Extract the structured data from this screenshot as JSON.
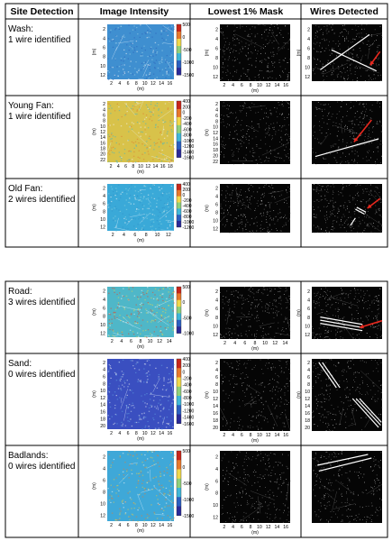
{
  "headers": [
    "Site Detection",
    "Image Intensity",
    "Lowest 1% Mask",
    "Wires Detected"
  ],
  "unit_label": "(m)",
  "rows": [
    {
      "name": "Wash:",
      "result": "1 wire identified",
      "x_ticks": [
        "2",
        "4",
        "6",
        "8",
        "10",
        "12",
        "14",
        "16"
      ],
      "y_ticks": [
        "2",
        "4",
        "6",
        "8",
        "10",
        "12"
      ],
      "cbar_ticks": [
        "500",
        "0",
        "-500",
        "-1000",
        "-1500"
      ],
      "mask_x_ticks": [
        "2",
        "4",
        "6",
        "8",
        "10",
        "12",
        "14",
        "16"
      ],
      "mask_y_ticks": [
        "2",
        "4",
        "6",
        "8",
        "10",
        "12"
      ],
      "wire_y_ticks": [
        "2",
        "4",
        "6",
        "8",
        "10",
        "12"
      ],
      "colors": {
        "base": "#3f8fd0",
        "accent": "#2b5fb8",
        "hot": "#9ad2e8"
      },
      "wire_lines": [
        [
          0.12,
          0.8,
          0.82,
          0.18
        ],
        [
          0.28,
          0.45,
          0.92,
          0.82
        ]
      ],
      "arrows": [
        [
          0.97,
          0.48,
          0.83,
          0.72
        ]
      ]
    },
    {
      "name": "Young Fan:",
      "result": "1 wire identified",
      "x_ticks": [
        "2",
        "4",
        "6",
        "8",
        "10",
        "12",
        "14",
        "16",
        "18"
      ],
      "y_ticks": [
        "2",
        "4",
        "6",
        "8",
        "10",
        "12",
        "14",
        "16",
        "18",
        "20",
        "22"
      ],
      "cbar_ticks": [
        "400",
        "200",
        "0",
        "-200",
        "-400",
        "-600",
        "-800",
        "-1000",
        "-1200",
        "-1400",
        "-1600"
      ],
      "mask_x_ticks": [],
      "mask_y_ticks": [
        "2",
        "4",
        "6",
        "8",
        "10",
        "12",
        "14",
        "16",
        "18",
        "20",
        "22"
      ],
      "wire_y_ticks": [],
      "colors": {
        "base": "#d8c24a",
        "accent": "#3fb7c8",
        "hot": "#e07a30"
      },
      "wire_lines": [
        [
          0.05,
          0.88,
          0.95,
          0.6
        ]
      ],
      "arrows": [
        [
          0.85,
          0.3,
          0.6,
          0.65
        ]
      ]
    },
    {
      "name": "Old Fan:",
      "result": "2 wires identified",
      "x_ticks": [
        "2",
        "4",
        "6",
        "8",
        "10",
        "12"
      ],
      "y_ticks": [
        "2",
        "4",
        "6",
        "8",
        "10",
        "12"
      ],
      "cbar_ticks": [
        "400",
        "200",
        "0",
        "-200",
        "-400",
        "-600",
        "-800",
        "-1000",
        "-1200"
      ],
      "mask_x_ticks": [],
      "mask_y_ticks": [
        "2",
        "4",
        "6",
        "8",
        "10",
        "12"
      ],
      "wire_y_ticks": [],
      "colors": {
        "base": "#3aa9d8",
        "accent": "#2f8fc8",
        "hot": "#8fd3e0"
      },
      "wire_lines": [
        [
          0.62,
          0.52,
          0.75,
          0.62
        ],
        [
          0.64,
          0.48,
          0.77,
          0.58
        ],
        [
          0.55,
          0.85,
          0.62,
          0.7
        ]
      ],
      "arrows": [
        [
          0.97,
          0.3,
          0.79,
          0.5
        ]
      ]
    },
    {
      "name": "Road:",
      "result": "3 wires identified",
      "x_ticks": [
        "2",
        "4",
        "6",
        "8",
        "10",
        "12",
        "14"
      ],
      "y_ticks": [
        "2",
        "4",
        "6",
        "8",
        "10",
        "12"
      ],
      "cbar_ticks": [
        "500",
        "0",
        "-500",
        "-1000"
      ],
      "mask_x_ticks": [
        "2",
        "4",
        "6",
        "8",
        "10",
        "12",
        "14"
      ],
      "mask_y_ticks": [
        "2",
        "4",
        "6",
        "8",
        "10",
        "12"
      ],
      "wire_y_ticks": [
        "2",
        "4",
        "6",
        "8",
        "10",
        "12"
      ],
      "colors": {
        "base": "#4fb7c8",
        "accent": "#e8d84a",
        "hot": "#e84a2a"
      },
      "wire_lines": [
        [
          0.12,
          0.58,
          0.72,
          0.72
        ],
        [
          0.12,
          0.64,
          0.72,
          0.78
        ],
        [
          0.12,
          0.7,
          0.72,
          0.84
        ]
      ],
      "arrows": [
        [
          1.0,
          0.65,
          0.68,
          0.78
        ]
      ]
    },
    {
      "name": "Sand:",
      "result": "0 wires identified",
      "x_ticks": [
        "2",
        "4",
        "6",
        "8",
        "10",
        "12",
        "14",
        "16"
      ],
      "y_ticks": [
        "2",
        "4",
        "6",
        "8",
        "10",
        "12",
        "14",
        "16",
        "18",
        "20"
      ],
      "cbar_ticks": [
        "400",
        "200",
        "0",
        "-200",
        "-400",
        "-600",
        "-800",
        "-1000",
        "-1200",
        "-1400",
        "-1600"
      ],
      "mask_x_ticks": [
        "2",
        "4",
        "6",
        "8",
        "10",
        "12",
        "14",
        "16"
      ],
      "mask_y_ticks": [
        "2",
        "4",
        "6",
        "8",
        "10",
        "12",
        "14",
        "16",
        "18",
        "20"
      ],
      "wire_y_ticks": [
        "2",
        "4",
        "6",
        "8",
        "10",
        "12",
        "14",
        "16",
        "18",
        "20"
      ],
      "colors": {
        "base": "#3a4fc0",
        "accent": "#5fa0e0",
        "hot": "#d0e0f0"
      },
      "wire_lines": [
        [
          0.1,
          0.05,
          0.35,
          0.4
        ],
        [
          0.15,
          0.05,
          0.4,
          0.4
        ],
        [
          0.58,
          0.55,
          0.95,
          0.95
        ],
        [
          0.63,
          0.55,
          0.98,
          0.92
        ],
        [
          0.68,
          0.55,
          0.99,
          0.88
        ]
      ],
      "arrows": []
    },
    {
      "name": "Badlands:",
      "result": "0 wires identified",
      "x_ticks": [
        "2",
        "4",
        "6",
        "8",
        "10",
        "12",
        "14",
        "16"
      ],
      "y_ticks": [
        "2",
        "4",
        "6",
        "8",
        "10",
        "12"
      ],
      "cbar_ticks": [
        "500",
        "0",
        "-500",
        "-1000",
        "-1500"
      ],
      "mask_x_ticks": [
        "2",
        "4",
        "6",
        "8",
        "10",
        "12",
        "14",
        "16"
      ],
      "mask_y_ticks": [
        "2",
        "4",
        "6",
        "8",
        "10",
        "12"
      ],
      "wire_y_ticks": [],
      "colors": {
        "base": "#3fa8d8",
        "accent": "#e0c84a",
        "hot": "#e87a30"
      },
      "wire_lines": [
        [
          0.08,
          0.2,
          0.8,
          0.05
        ],
        [
          0.1,
          0.28,
          0.85,
          0.1
        ]
      ],
      "arrows": []
    }
  ]
}
